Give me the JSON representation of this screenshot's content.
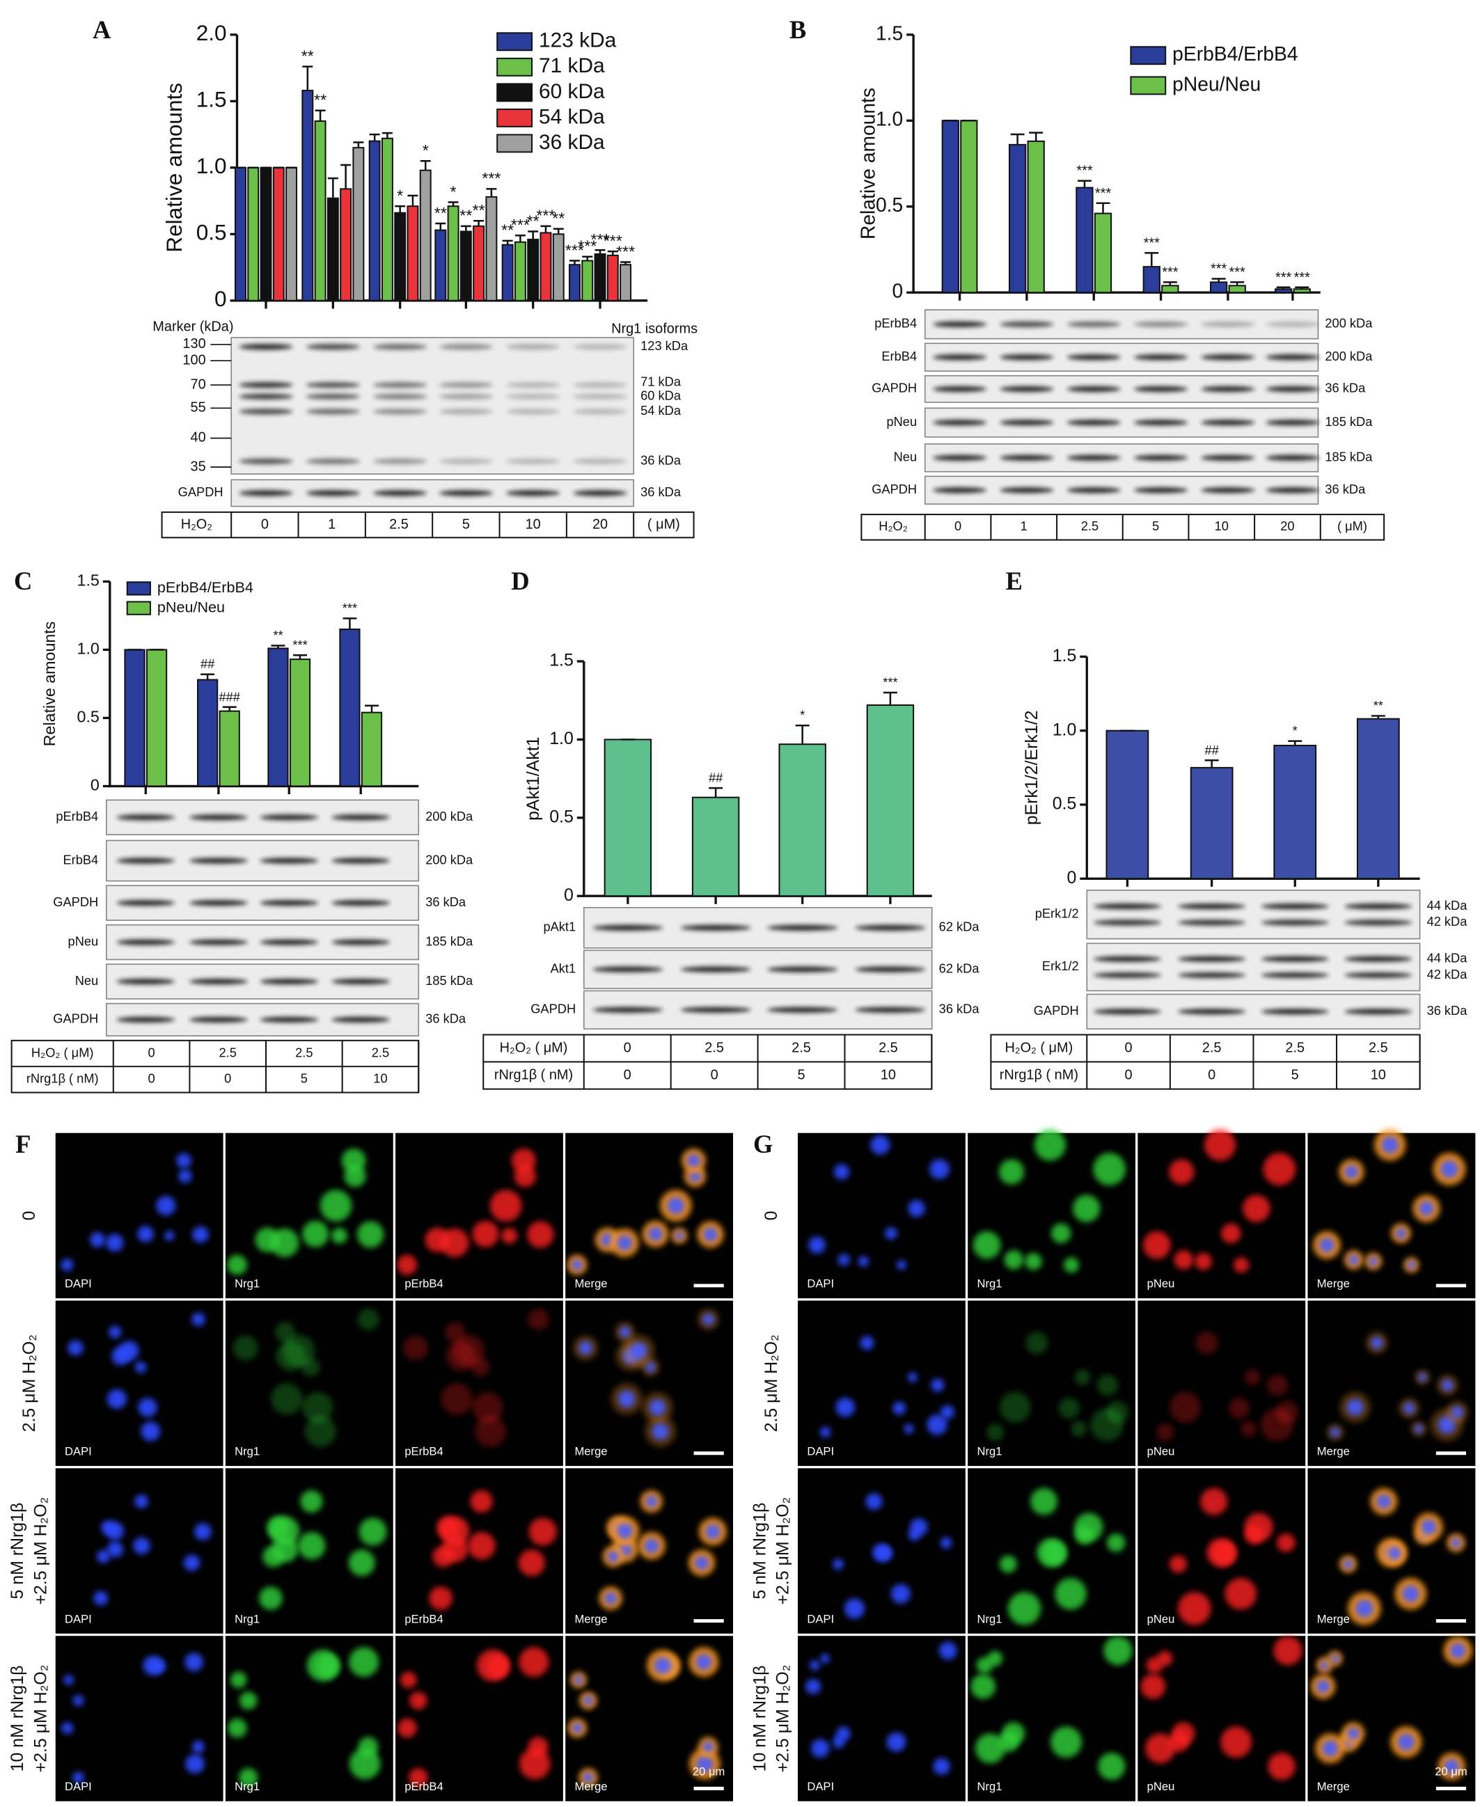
{
  "chart_data": [
    {
      "type": "bar",
      "panel_label": "A",
      "ylabel": "Relative amounts",
      "ylim": [
        0,
        2
      ],
      "yticks": [
        0,
        0.5,
        {
          "value": 1,
          "label": "1.0"
        },
        1.5,
        {
          "value": 2,
          "label": "2.0"
        }
      ],
      "categories": [
        "0",
        "1",
        "2.5",
        "5",
        "10",
        "20"
      ],
      "series": [
        {
          "name": "123 kDa",
          "color": "#2b3d9b",
          "values": [
            1,
            1.58,
            1.2,
            0.53,
            0.42,
            0.27
          ],
          "errors": [
            0,
            0.18,
            0.05,
            0.05,
            0.03,
            0.03
          ],
          "annotations": [
            null,
            "**",
            null,
            "**",
            "**",
            "***"
          ]
        },
        {
          "name": "71 kDa",
          "color": "#6cc04a",
          "values": [
            1,
            1.35,
            1.22,
            0.71,
            0.44,
            0.3
          ],
          "errors": [
            0,
            0.08,
            0.04,
            0.03,
            0.05,
            0.03
          ],
          "annotations": [
            null,
            "**",
            null,
            "*",
            "***",
            "***"
          ]
        },
        {
          "name": "60 kDa",
          "color": "#111111",
          "values": [
            1,
            0.77,
            0.66,
            0.52,
            0.46,
            0.35
          ],
          "errors": [
            0,
            0.15,
            0.05,
            0.04,
            0.06,
            0.03
          ],
          "annotations": [
            null,
            null,
            "*",
            "**",
            "**",
            "***"
          ]
        },
        {
          "name": "54 kDa",
          "color": "#e8343a",
          "values": [
            1,
            0.84,
            0.71,
            0.56,
            0.51,
            0.34
          ],
          "errors": [
            0,
            0.18,
            0.08,
            0.04,
            0.05,
            0.03
          ],
          "annotations": [
            null,
            null,
            null,
            "**",
            "***",
            "***"
          ]
        },
        {
          "name": "36 kDa",
          "color": "#a0a0a0",
          "values": [
            1,
            1.15,
            0.98,
            0.78,
            0.5,
            0.27
          ],
          "errors": [
            0,
            0.04,
            0.07,
            0.06,
            0.04,
            0.02
          ],
          "annotations": [
            null,
            null,
            "*",
            "***",
            "**",
            "***"
          ]
        }
      ],
      "marker_title": "Marker (kDa)",
      "markers": [
        "130",
        "100",
        "70",
        "55",
        "40",
        "35"
      ],
      "isoform_title": "Nrg1 isoforms",
      "blots": [
        {
          "sizes": [
            "123 kDa",
            "71 kDa",
            "60 kDa",
            "54 kDa",
            "36 kDa"
          ]
        },
        {
          "label": "GAPDH",
          "sizes": [
            "36 kDa"
          ]
        }
      ],
      "table_label": "H₂O₂",
      "table_unit": "( μM)"
    },
    {
      "type": "bar",
      "panel_label": "B",
      "ylabel": "Relative amounts",
      "ylim": [
        0,
        1.5
      ],
      "yticks": [
        0,
        0.5,
        {
          "value": 1,
          "label": "1.0"
        },
        1.5
      ],
      "categories": [
        "0",
        "1",
        "2.5",
        "5",
        "10",
        "20"
      ],
      "series": [
        {
          "name": "pErbB4/ErbB4",
          "color": "#2b3d9b",
          "values": [
            1,
            0.86,
            0.61,
            0.15,
            0.06,
            0.02
          ],
          "errors": [
            0,
            0.06,
            0.04,
            0.08,
            0.02,
            0.01
          ],
          "annotations": [
            null,
            null,
            "***",
            "***",
            "***",
            "***"
          ]
        },
        {
          "name": "pNeu/Neu",
          "color": "#6cc04a",
          "values": [
            1,
            0.88,
            0.46,
            0.04,
            0.04,
            0.02
          ],
          "errors": [
            0,
            0.05,
            0.06,
            0.02,
            0.02,
            0.01
          ],
          "annotations": [
            null,
            null,
            "***",
            "***",
            "***",
            "***"
          ]
        }
      ],
      "blots": [
        {
          "label": "pErbB4",
          "sizes": [
            "200 kDa"
          ]
        },
        {
          "label": "ErbB4",
          "sizes": [
            "200 kDa"
          ]
        },
        {
          "label": "GAPDH",
          "sizes": [
            "36 kDa"
          ]
        },
        {
          "label": "pNeu",
          "sizes": [
            "185 kDa"
          ]
        },
        {
          "label": "Neu",
          "sizes": [
            "185 kDa"
          ]
        },
        {
          "label": "GAPDH",
          "sizes": [
            "36 kDa"
          ]
        }
      ],
      "table_label": "H₂O₂",
      "table_unit": "( μM)"
    },
    {
      "type": "bar",
      "panel_label": "C",
      "ylabel": "Relative amounts",
      "ylim": [
        0,
        1.5
      ],
      "yticks": [
        0,
        0.5,
        {
          "value": 1,
          "label": "1.0"
        },
        1.5
      ],
      "categories": [
        "0",
        "2.5",
        "2.5",
        "2.5"
      ],
      "series": [
        {
          "name": "pErbB4/ErbB4",
          "color": "#2b3d9b",
          "values": [
            1,
            0.78,
            1.01,
            1.15
          ],
          "errors": [
            0,
            0.04,
            0.02,
            0.08
          ],
          "annotations": [
            null,
            "##",
            "**",
            "***"
          ]
        },
        {
          "name": "pNeu/Neu",
          "color": "#6cc04a",
          "values": [
            1,
            0.55,
            0.93,
            0.54
          ],
          "errors": [
            0,
            0.03,
            0.03,
            0.05
          ],
          "annotations": [
            null,
            "###",
            "***",
            null
          ]
        }
      ],
      "blots": [
        {
          "label": "pErbB4",
          "sizes": [
            "200 kDa"
          ]
        },
        {
          "label": "ErbB4",
          "sizes": [
            "200 kDa"
          ]
        },
        {
          "label": "GAPDH",
          "sizes": [
            "36 kDa"
          ]
        },
        {
          "label": "pNeu",
          "sizes": [
            "185 kDa"
          ]
        },
        {
          "label": "Neu",
          "sizes": [
            "185 kDa"
          ]
        },
        {
          "label": "GAPDH",
          "sizes": [
            "36 kDa"
          ]
        }
      ],
      "table_label": "H₂O₂ ( μM)",
      "table_rows": [
        {
          "label": "rNrg1β ( nM)",
          "cells": [
            "0",
            "0",
            "5",
            "10"
          ]
        }
      ]
    },
    {
      "type": "bar",
      "panel_label": "D",
      "ylabel": "pAkt1/Akt1",
      "ylim": [
        0,
        1.5
      ],
      "yticks": [
        0,
        0.5,
        {
          "value": 1,
          "label": "1.0"
        },
        1.5
      ],
      "categories": [
        "0",
        "2.5",
        "2.5",
        "2.5"
      ],
      "color": "#5cbf8c",
      "values": [
        1,
        0.63,
        0.97,
        1.22
      ],
      "errors": [
        0,
        0.06,
        0.12,
        0.08
      ],
      "annotations": [
        null,
        "##",
        "*",
        "***"
      ],
      "blots": [
        {
          "label": "pAkt1",
          "sizes": [
            "62 kDa"
          ]
        },
        {
          "label": "Akt1",
          "sizes": [
            "62 kDa"
          ]
        },
        {
          "label": "GAPDH",
          "sizes": [
            "36 kDa"
          ]
        }
      ],
      "table_label": "H₂O₂ ( μM)",
      "table_rows": [
        {
          "label": "rNrg1β ( nM)",
          "cells": [
            "0",
            "0",
            "5",
            "10"
          ]
        }
      ]
    },
    {
      "type": "bar",
      "panel_label": "E",
      "ylabel": "pErk1/2/Erk1/2",
      "ylim": [
        0,
        1.5
      ],
      "yticks": [
        0,
        0.5,
        {
          "value": 1,
          "label": "1.0"
        },
        1.5
      ],
      "categories": [
        "0",
        "2.5",
        "2.5",
        "2.5"
      ],
      "color": "#3c4ea6",
      "values": [
        1,
        0.75,
        0.9,
        1.08
      ],
      "errors": [
        0,
        0.05,
        0.03,
        0.02
      ],
      "annotations": [
        null,
        "##",
        "*",
        "**"
      ],
      "blots": [
        {
          "label": "pErk1/2",
          "sizes": [
            "44 kDa",
            "42 kDa"
          ]
        },
        {
          "label": "Erk1/2",
          "sizes": [
            "44 kDa",
            "42 kDa"
          ]
        },
        {
          "label": "GAPDH",
          "sizes": [
            "36 kDa"
          ]
        }
      ],
      "table_label": "H₂O₂ ( μM)",
      "table_rows": [
        {
          "label": "rNrg1β ( nM)",
          "cells": [
            "0",
            "0",
            "5",
            "10"
          ]
        }
      ]
    }
  ],
  "microscopy": [
    {
      "panel_label": "F",
      "rows": [
        "0",
        "2.5 μM H₂O₂",
        [
          "5 nM rNrg1β",
          "+2.5 μM H₂O₂"
        ],
        [
          "10 nM rNrg1β",
          "+2.5 μM H₂O₂"
        ]
      ],
      "channels": [
        "DAPI",
        "Nrg1",
        "pErbB4",
        "Merge"
      ],
      "scale_bar": "20 μm"
    },
    {
      "panel_label": "G",
      "rows": [
        "0",
        "2.5 μM H₂O₂",
        [
          "5 nM rNrg1β",
          "+2.5 μM H₂O₂"
        ],
        [
          "10 nM rNrg1β",
          "+2.5 μM H₂O₂"
        ]
      ],
      "channels": [
        "DAPI",
        "Nrg1",
        "pNeu",
        "Merge"
      ],
      "scale_bar": "20 μm"
    }
  ]
}
